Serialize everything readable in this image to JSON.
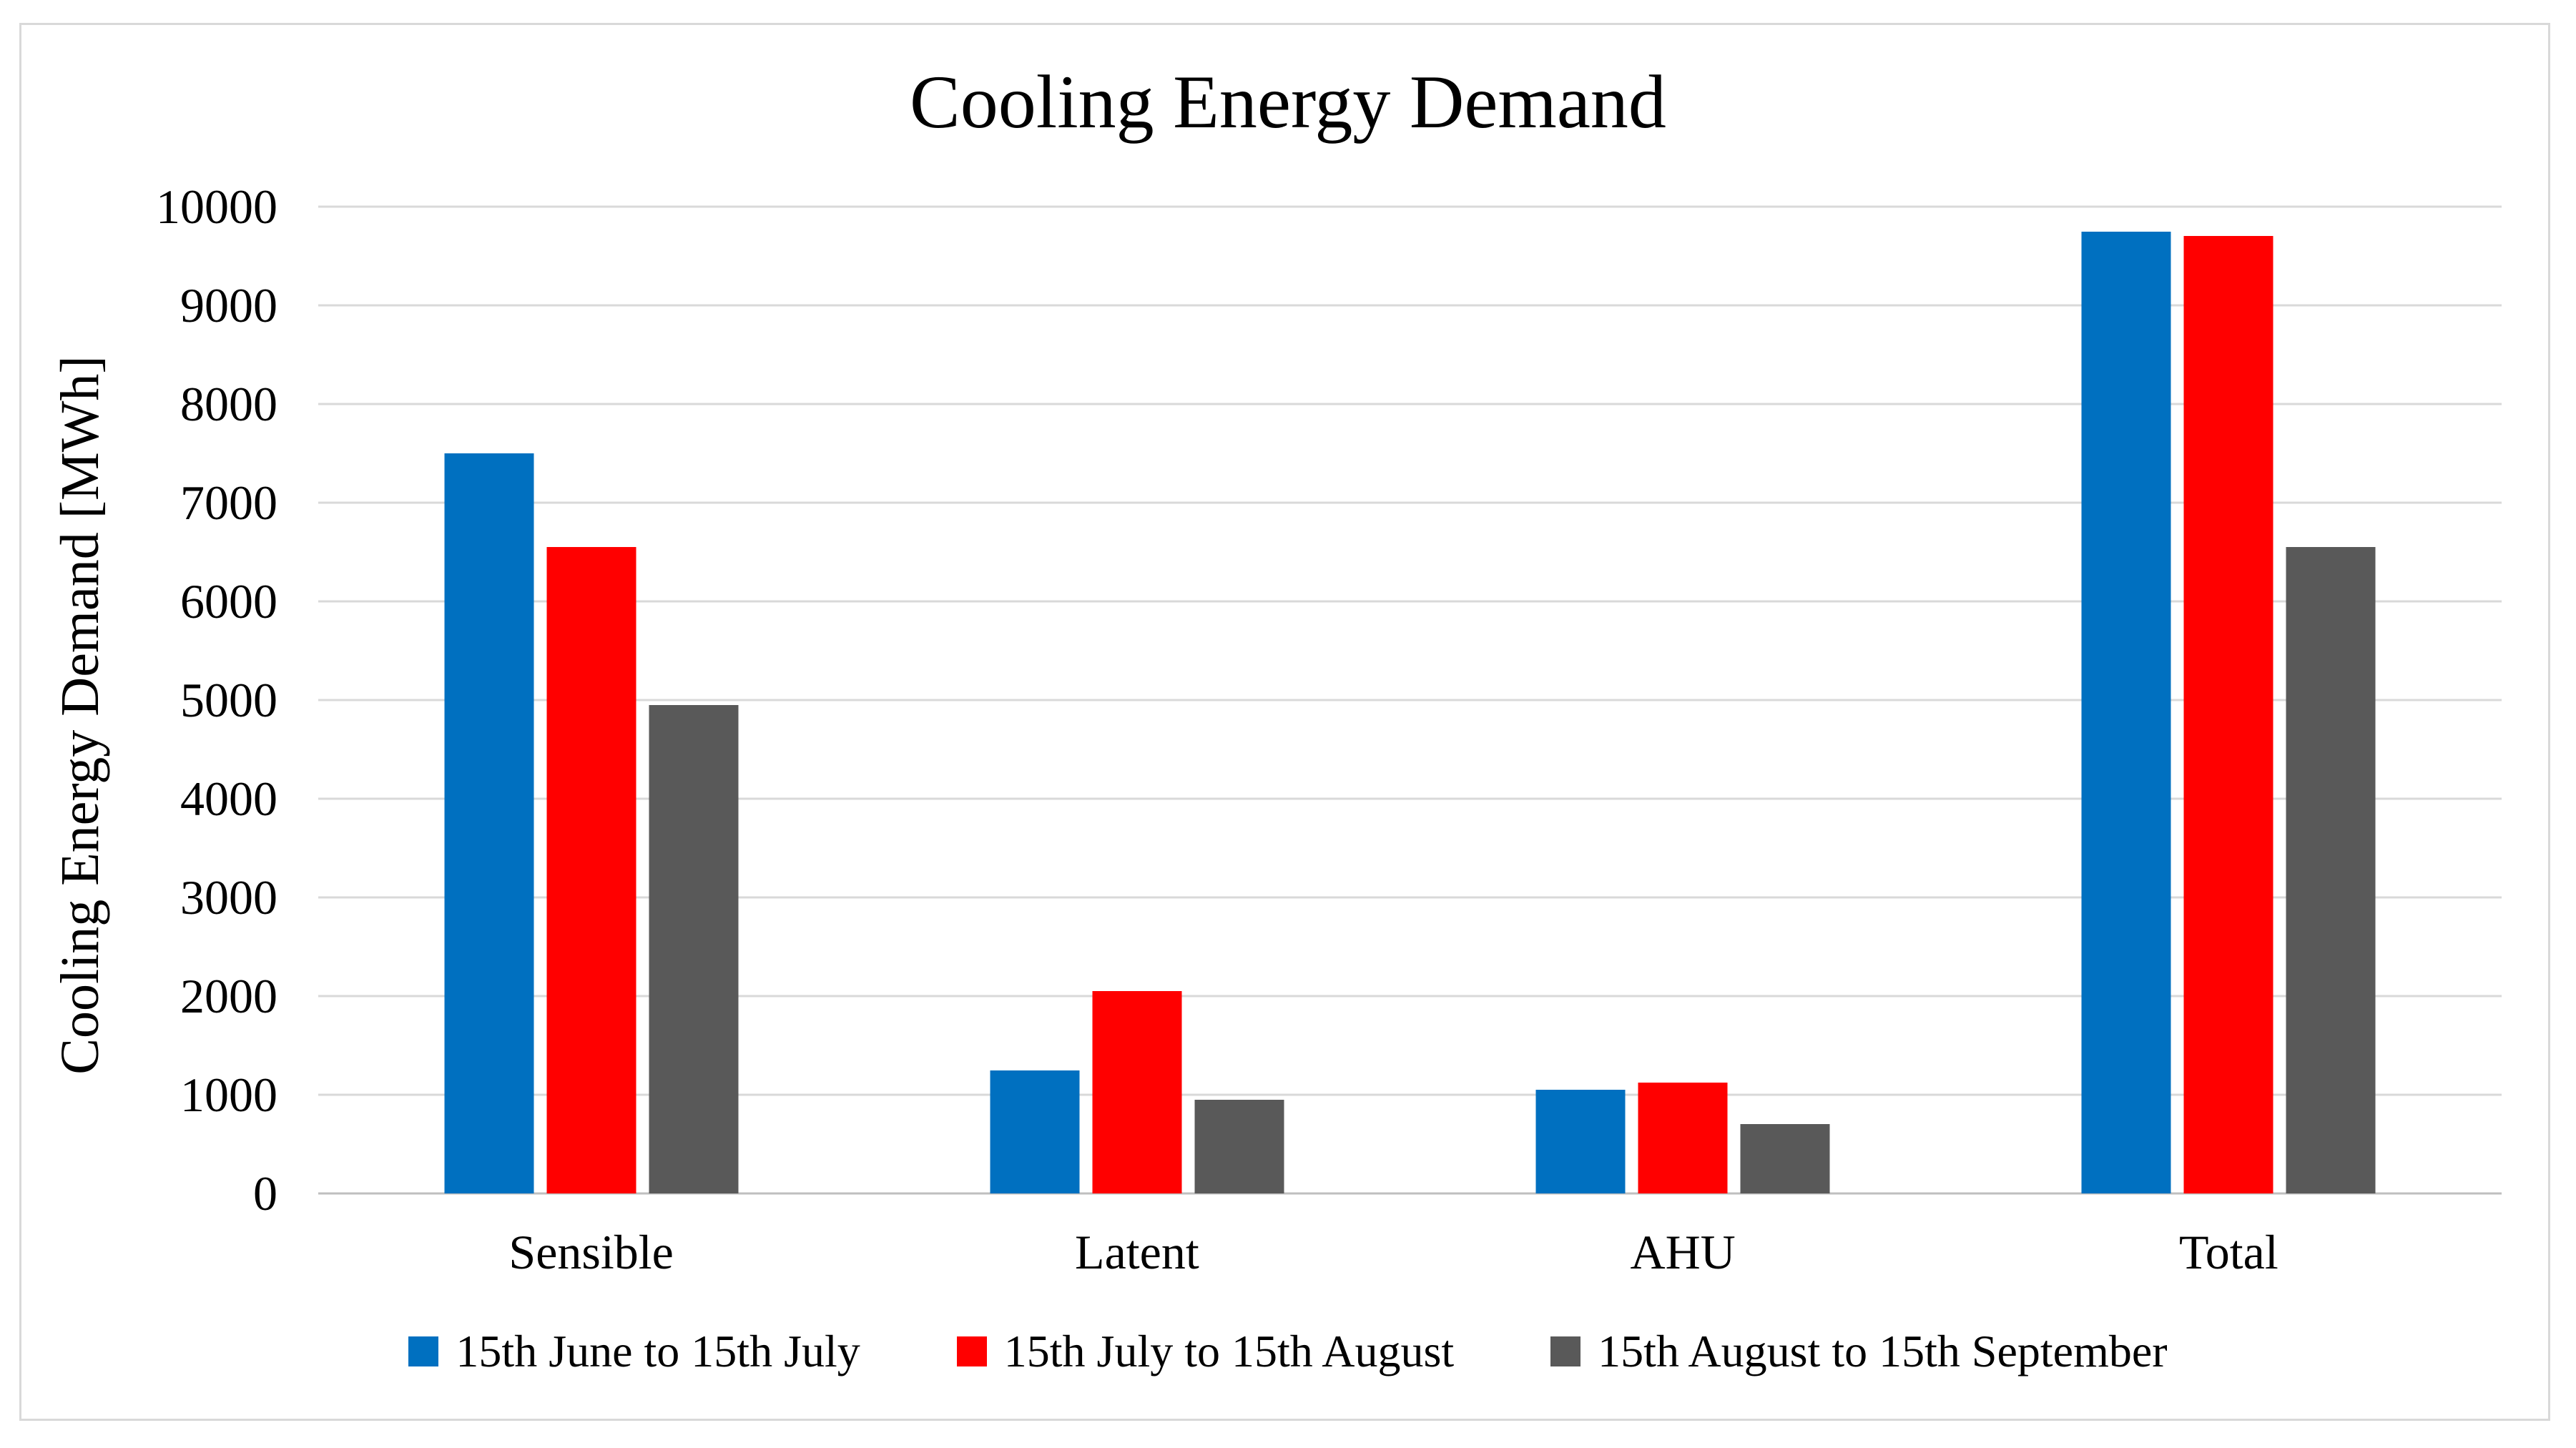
{
  "chart_data": {
    "type": "bar",
    "title": "Cooling Energy Demand",
    "xlabel": "",
    "ylabel": "Cooling Energy Demand [MWh]",
    "categories": [
      "Sensible",
      "Latent",
      "AHU",
      "Total"
    ],
    "series": [
      {
        "name": "15th June to 15th July",
        "color": "#0070C0",
        "values": [
          7500,
          1250,
          1050,
          9750
        ]
      },
      {
        "name": "15th July to 15th August",
        "color": "#FF0000",
        "values": [
          6550,
          2050,
          1120,
          9700
        ]
      },
      {
        "name": "15th August to 15th September",
        "color": "#595959",
        "values": [
          4950,
          950,
          700,
          6550
        ]
      }
    ],
    "ylim": [
      0,
      10000
    ],
    "ytick_step": 1000,
    "yticks": [
      0,
      1000,
      2000,
      3000,
      4000,
      5000,
      6000,
      7000,
      8000,
      9000,
      10000
    ],
    "grid": true,
    "gridline_color": "#D9D9D9",
    "legend_position": "bottom"
  }
}
